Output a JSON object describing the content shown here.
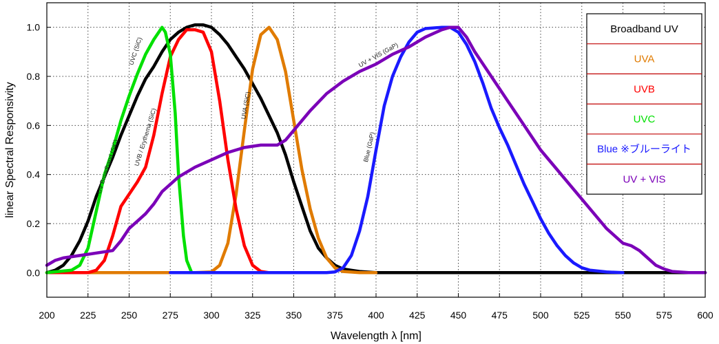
{
  "chart_data": {
    "type": "line",
    "xlabel": "Wavelength λ [nm]",
    "ylabel": "linear Spectral Responsivity",
    "xlim": [
      200,
      600
    ],
    "ylim": [
      -0.1,
      1.1
    ],
    "x_ticks": [
      "200",
      "225",
      "250",
      "275",
      "300",
      "325",
      "350",
      "375",
      "400",
      "425",
      "450",
      "475",
      "500",
      "525",
      "550",
      "575",
      "600"
    ],
    "y_ticks": [
      "0.0",
      "0.2",
      "0.4",
      "0.6",
      "0.8",
      "1.0"
    ],
    "grid": true,
    "legend_position": "top-right",
    "series": [
      {
        "name": "Broadband UV",
        "color": "#000000",
        "curve_label": "UV Broadband (SiC)",
        "points": [
          [
            200,
            0.0
          ],
          [
            205,
            0.01
          ],
          [
            210,
            0.03
          ],
          [
            215,
            0.07
          ],
          [
            220,
            0.13
          ],
          [
            225,
            0.21
          ],
          [
            230,
            0.31
          ],
          [
            235,
            0.39
          ],
          [
            240,
            0.47
          ],
          [
            245,
            0.56
          ],
          [
            250,
            0.64
          ],
          [
            255,
            0.72
          ],
          [
            260,
            0.79
          ],
          [
            265,
            0.84
          ],
          [
            270,
            0.9
          ],
          [
            275,
            0.95
          ],
          [
            280,
            0.98
          ],
          [
            285,
            1.0
          ],
          [
            290,
            1.01
          ],
          [
            295,
            1.01
          ],
          [
            300,
            1.0
          ],
          [
            305,
            0.97
          ],
          [
            310,
            0.93
          ],
          [
            315,
            0.88
          ],
          [
            320,
            0.83
          ],
          [
            325,
            0.77
          ],
          [
            330,
            0.71
          ],
          [
            335,
            0.64
          ],
          [
            340,
            0.57
          ],
          [
            345,
            0.48
          ],
          [
            350,
            0.37
          ],
          [
            355,
            0.27
          ],
          [
            360,
            0.17
          ],
          [
            365,
            0.1
          ],
          [
            370,
            0.06
          ],
          [
            375,
            0.03
          ],
          [
            380,
            0.015
          ],
          [
            390,
            0.005
          ],
          [
            400,
            0.0
          ],
          [
            600,
            0.0
          ]
        ]
      },
      {
        "name": "UVA",
        "color": "#e07b00",
        "curve_label": "UVA (SiC)",
        "points": [
          [
            200,
            0.0
          ],
          [
            290,
            0.0
          ],
          [
            300,
            0.003
          ],
          [
            305,
            0.03
          ],
          [
            310,
            0.12
          ],
          [
            315,
            0.32
          ],
          [
            320,
            0.58
          ],
          [
            325,
            0.83
          ],
          [
            330,
            0.97
          ],
          [
            335,
            1.0
          ],
          [
            340,
            0.95
          ],
          [
            345,
            0.82
          ],
          [
            350,
            0.62
          ],
          [
            355,
            0.42
          ],
          [
            360,
            0.26
          ],
          [
            365,
            0.14
          ],
          [
            370,
            0.06
          ],
          [
            375,
            0.02
          ],
          [
            380,
            0.005
          ],
          [
            390,
            0.0
          ],
          [
            400,
            0.0
          ]
        ]
      },
      {
        "name": "UVB",
        "color": "#ff0000",
        "curve_label": "UVB / Erythema (SiC)",
        "points": [
          [
            200,
            0.0
          ],
          [
            225,
            0.0
          ],
          [
            230,
            0.01
          ],
          [
            235,
            0.05
          ],
          [
            240,
            0.15
          ],
          [
            245,
            0.27
          ],
          [
            250,
            0.32
          ],
          [
            255,
            0.37
          ],
          [
            260,
            0.43
          ],
          [
            265,
            0.56
          ],
          [
            270,
            0.73
          ],
          [
            275,
            0.88
          ],
          [
            280,
            0.95
          ],
          [
            285,
            0.99
          ],
          [
            290,
            0.99
          ],
          [
            295,
            0.98
          ],
          [
            300,
            0.9
          ],
          [
            305,
            0.7
          ],
          [
            310,
            0.46
          ],
          [
            315,
            0.26
          ],
          [
            320,
            0.11
          ],
          [
            325,
            0.03
          ],
          [
            330,
            0.005
          ],
          [
            335,
            0.0
          ],
          [
            340,
            0.0
          ]
        ]
      },
      {
        "name": "UVC",
        "color": "#00e000",
        "curve_label": "UVC (SiC)",
        "points": [
          [
            200,
            0.0
          ],
          [
            215,
            0.01
          ],
          [
            220,
            0.03
          ],
          [
            225,
            0.1
          ],
          [
            230,
            0.25
          ],
          [
            235,
            0.4
          ],
          [
            240,
            0.5
          ],
          [
            245,
            0.62
          ],
          [
            250,
            0.72
          ],
          [
            255,
            0.81
          ],
          [
            260,
            0.89
          ],
          [
            265,
            0.95
          ],
          [
            270,
            1.0
          ],
          [
            272,
            0.98
          ],
          [
            275,
            0.89
          ],
          [
            278,
            0.65
          ],
          [
            280,
            0.4
          ],
          [
            283,
            0.15
          ],
          [
            285,
            0.05
          ],
          [
            288,
            0.0
          ],
          [
            290,
            0.0
          ]
        ]
      },
      {
        "name": "Blue ※ブルーライト",
        "color": "#1a1aff",
        "curve_label": "Blue (GaP)",
        "points": [
          [
            275,
            0.0
          ],
          [
            370,
            0.0
          ],
          [
            375,
            0.003
          ],
          [
            380,
            0.02
          ],
          [
            385,
            0.07
          ],
          [
            390,
            0.17
          ],
          [
            395,
            0.31
          ],
          [
            400,
            0.5
          ],
          [
            405,
            0.68
          ],
          [
            410,
            0.8
          ],
          [
            415,
            0.88
          ],
          [
            420,
            0.94
          ],
          [
            425,
            0.98
          ],
          [
            430,
            0.995
          ],
          [
            440,
            1.0
          ],
          [
            445,
            1.0
          ],
          [
            450,
            0.98
          ],
          [
            455,
            0.93
          ],
          [
            460,
            0.86
          ],
          [
            465,
            0.77
          ],
          [
            470,
            0.67
          ],
          [
            475,
            0.59
          ],
          [
            480,
            0.52
          ],
          [
            485,
            0.44
          ],
          [
            490,
            0.36
          ],
          [
            495,
            0.29
          ],
          [
            500,
            0.22
          ],
          [
            505,
            0.16
          ],
          [
            510,
            0.11
          ],
          [
            515,
            0.07
          ],
          [
            520,
            0.04
          ],
          [
            525,
            0.02
          ],
          [
            530,
            0.01
          ],
          [
            540,
            0.003
          ],
          [
            550,
            0.0
          ]
        ]
      },
      {
        "name": "UV + VIS",
        "color": "#7b00b8",
        "curve_label": "UV + VIS (GaP)",
        "points": [
          [
            200,
            0.03
          ],
          [
            205,
            0.05
          ],
          [
            210,
            0.06
          ],
          [
            220,
            0.07
          ],
          [
            230,
            0.08
          ],
          [
            240,
            0.09
          ],
          [
            245,
            0.13
          ],
          [
            250,
            0.18
          ],
          [
            255,
            0.21
          ],
          [
            260,
            0.24
          ],
          [
            265,
            0.28
          ],
          [
            270,
            0.33
          ],
          [
            280,
            0.39
          ],
          [
            290,
            0.43
          ],
          [
            300,
            0.46
          ],
          [
            310,
            0.49
          ],
          [
            320,
            0.51
          ],
          [
            330,
            0.52
          ],
          [
            340,
            0.52
          ],
          [
            345,
            0.54
          ],
          [
            350,
            0.58
          ],
          [
            360,
            0.66
          ],
          [
            370,
            0.73
          ],
          [
            380,
            0.78
          ],
          [
            390,
            0.82
          ],
          [
            400,
            0.85
          ],
          [
            410,
            0.89
          ],
          [
            420,
            0.92
          ],
          [
            430,
            0.96
          ],
          [
            440,
            0.99
          ],
          [
            445,
            1.0
          ],
          [
            450,
            1.0
          ],
          [
            455,
            0.96
          ],
          [
            460,
            0.9
          ],
          [
            470,
            0.8
          ],
          [
            480,
            0.7
          ],
          [
            490,
            0.6
          ],
          [
            500,
            0.5
          ],
          [
            510,
            0.42
          ],
          [
            520,
            0.34
          ],
          [
            530,
            0.26
          ],
          [
            540,
            0.18
          ],
          [
            550,
            0.12
          ],
          [
            555,
            0.11
          ],
          [
            560,
            0.09
          ],
          [
            565,
            0.06
          ],
          [
            570,
            0.03
          ],
          [
            575,
            0.015
          ],
          [
            580,
            0.005
          ],
          [
            590,
            0.0
          ],
          [
            600,
            0.0
          ]
        ]
      }
    ]
  }
}
